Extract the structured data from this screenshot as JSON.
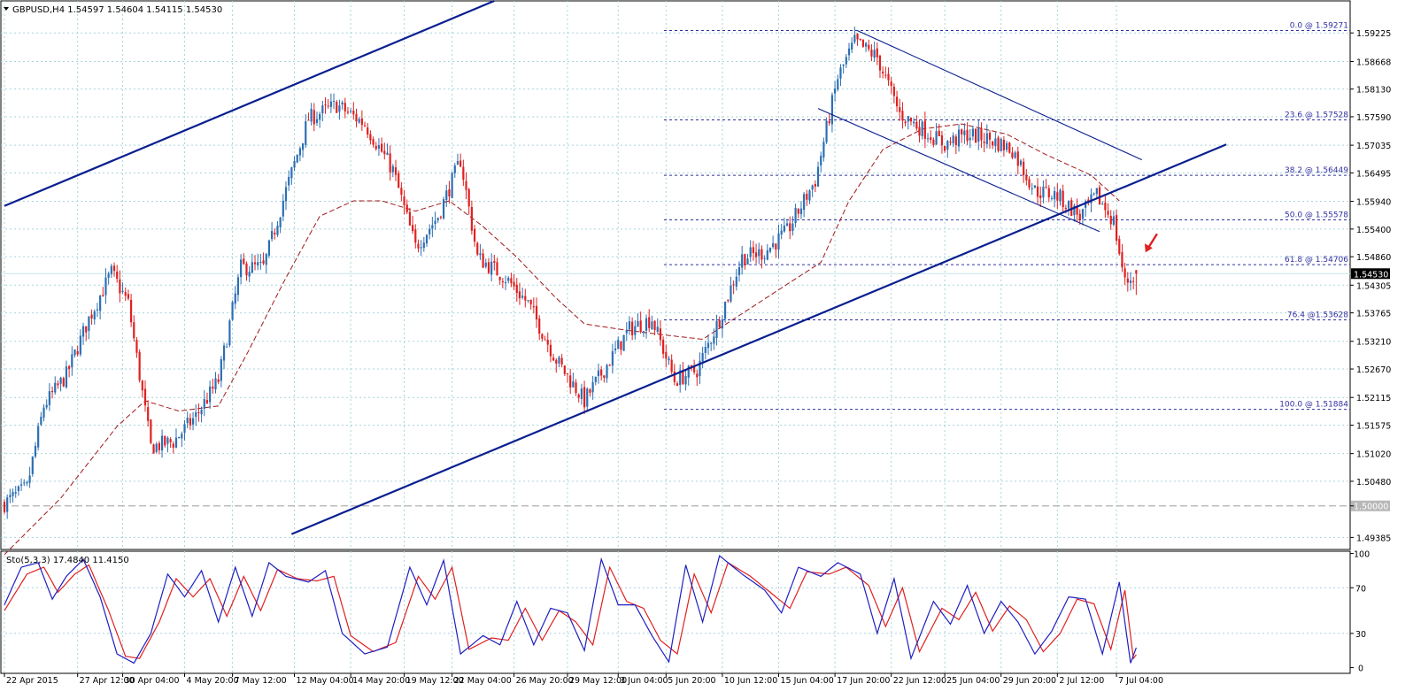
{
  "header": {
    "symbol_text": "GBPUSD,H4  1.54597  1.54604  1.54115  1.54530"
  },
  "stoch_header": {
    "text": "Sto(5,3,3) 17.4840 11.4150"
  },
  "price_axis": {
    "ticks": [
      "1.59225",
      "1.58668",
      "1.58130",
      "1.57590",
      "1.57035",
      "1.56495",
      "1.55940",
      "1.55400",
      "1.54860",
      "1.54305",
      "1.53765",
      "1.53210",
      "1.52670",
      "1.52115",
      "1.51575",
      "1.51020",
      "1.50480",
      "1.50000",
      "1.49385"
    ],
    "tick_values": [
      1.59225,
      1.58668,
      1.5813,
      1.5759,
      1.57035,
      1.56495,
      1.5594,
      1.554,
      1.5486,
      1.54305,
      1.53765,
      1.5321,
      1.5267,
      1.52115,
      1.51575,
      1.5102,
      1.5048,
      1.5,
      1.49385
    ],
    "current_price_label": "1.54530",
    "current_price": 1.5453,
    "level_label": "1.50000",
    "level_price": 1.5
  },
  "stoch_axis": {
    "ticks": [
      "100",
      "70",
      "30",
      "0"
    ],
    "tick_values": [
      100,
      70,
      30,
      0
    ]
  },
  "time_axis": {
    "labels": [
      "22 Apr 2015",
      "27 Apr 12:00",
      "30 Apr 04:00",
      "4 May 20:00",
      "7 May 12:00",
      "12 May 04:00",
      "14 May 20:00",
      "19 May 12:00",
      "22 May 04:00",
      "26 May 20:00",
      "29 May 12:00",
      "3 Jun 04:00",
      "5 Jun 20:00",
      "10 Jun 12:00",
      "15 Jun 04:00",
      "17 Jun 20:00",
      "22 Jun 12:00",
      "25 Jun 04:00",
      "29 Jun 20:00",
      "2 Jul 12:00",
      "7 Jul 04:00"
    ],
    "bar_index": [
      0,
      26,
      42,
      64,
      81,
      103,
      123,
      142,
      159,
      181,
      200,
      218,
      235,
      255,
      275,
      295,
      315,
      334,
      354,
      374,
      395
    ]
  },
  "fibonacci": [
    {
      "label": "0.0 @ 1.59271",
      "price": 1.59271
    },
    {
      "label": "23.6 @ 1.57528",
      "price": 1.57528
    },
    {
      "label": "38.2 @ 1.56449",
      "price": 1.56449
    },
    {
      "label": "50.0 @ 1.55578",
      "price": 1.55578
    },
    {
      "label": "61.8 @ 1.54706",
      "price": 1.54706
    },
    {
      "label": "76.4 @1.53628",
      "price": 1.53628
    },
    {
      "label": "100.0 @ 1.51884",
      "price": 1.51884
    }
  ],
  "colors": {
    "bull": "#2c6fb4",
    "bear": "#e02020",
    "grid": "#a8d4dc",
    "trendline": "#0a1f8f",
    "fib": "#3030a0",
    "ma": "#a01818",
    "stoch_main": "#1f1fc0",
    "stoch_signal": "#e02020",
    "arrow": "#e02020"
  },
  "chart_data": [
    {
      "type": "candlestick",
      "title": "GBPUSD,H4",
      "timeframe": "H4",
      "bar_count": 403,
      "ylim": [
        1.4915,
        1.5985
      ],
      "last_ohlc": {
        "open": 1.54597,
        "high": 1.54604,
        "low": 1.54115,
        "close": 1.5453
      },
      "close_path": [
        {
          "bar": 0,
          "close": 1.5005
        },
        {
          "bar": 8,
          "close": 1.5035
        },
        {
          "bar": 14,
          "close": 1.5195
        },
        {
          "bar": 22,
          "close": 1.5255
        },
        {
          "bar": 30,
          "close": 1.5365
        },
        {
          "bar": 38,
          "close": 1.5455
        },
        {
          "bar": 44,
          "close": 1.5395
        },
        {
          "bar": 52,
          "close": 1.5115
        },
        {
          "bar": 60,
          "close": 1.5125
        },
        {
          "bar": 68,
          "close": 1.5175
        },
        {
          "bar": 76,
          "close": 1.5245
        },
        {
          "bar": 84,
          "close": 1.5465
        },
        {
          "bar": 92,
          "close": 1.5465
        },
        {
          "bar": 100,
          "close": 1.5615
        },
        {
          "bar": 108,
          "close": 1.5755
        },
        {
          "bar": 118,
          "close": 1.5782
        },
        {
          "bar": 128,
          "close": 1.5745
        },
        {
          "bar": 138,
          "close": 1.5655
        },
        {
          "bar": 146,
          "close": 1.5505
        },
        {
          "bar": 154,
          "close": 1.5565
        },
        {
          "bar": 162,
          "close": 1.5675
        },
        {
          "bar": 168,
          "close": 1.5485
        },
        {
          "bar": 178,
          "close": 1.5445
        },
        {
          "bar": 186,
          "close": 1.5395
        },
        {
          "bar": 196,
          "close": 1.5285
        },
        {
          "bar": 206,
          "close": 1.5205
        },
        {
          "bar": 214,
          "close": 1.5275
        },
        {
          "bar": 222,
          "close": 1.5345
        },
        {
          "bar": 230,
          "close": 1.5365
        },
        {
          "bar": 238,
          "close": 1.5245
        },
        {
          "bar": 246,
          "close": 1.5265
        },
        {
          "bar": 254,
          "close": 1.5365
        },
        {
          "bar": 262,
          "close": 1.5485
        },
        {
          "bar": 270,
          "close": 1.5495
        },
        {
          "bar": 278,
          "close": 1.5535
        },
        {
          "bar": 288,
          "close": 1.5635
        },
        {
          "bar": 296,
          "close": 1.5835
        },
        {
          "bar": 302,
          "close": 1.5905
        },
        {
          "bar": 310,
          "close": 1.5875
        },
        {
          "bar": 318,
          "close": 1.5765
        },
        {
          "bar": 326,
          "close": 1.5735
        },
        {
          "bar": 334,
          "close": 1.5705
        },
        {
          "bar": 342,
          "close": 1.5725
        },
        {
          "bar": 350,
          "close": 1.5715
        },
        {
          "bar": 358,
          "close": 1.5695
        },
        {
          "bar": 366,
          "close": 1.5615
        },
        {
          "bar": 374,
          "close": 1.5605
        },
        {
          "bar": 382,
          "close": 1.5565
        },
        {
          "bar": 388,
          "close": 1.5605
        },
        {
          "bar": 394,
          "close": 1.5555
        },
        {
          "bar": 398,
          "close": 1.5435
        },
        {
          "bar": 402,
          "close": 1.5453
        }
      ],
      "moving_average": [
        {
          "bar": 0,
          "value": 1.4905
        },
        {
          "bar": 20,
          "value": 1.5015
        },
        {
          "bar": 40,
          "value": 1.5155
        },
        {
          "bar": 50,
          "value": 1.5205
        },
        {
          "bar": 62,
          "value": 1.5185
        },
        {
          "bar": 76,
          "value": 1.5195
        },
        {
          "bar": 86,
          "value": 1.5295
        },
        {
          "bar": 100,
          "value": 1.5445
        },
        {
          "bar": 112,
          "value": 1.5565
        },
        {
          "bar": 124,
          "value": 1.5595
        },
        {
          "bar": 134,
          "value": 1.5595
        },
        {
          "bar": 146,
          "value": 1.5575
        },
        {
          "bar": 158,
          "value": 1.5595
        },
        {
          "bar": 170,
          "value": 1.5545
        },
        {
          "bar": 182,
          "value": 1.5485
        },
        {
          "bar": 196,
          "value": 1.5405
        },
        {
          "bar": 206,
          "value": 1.5355
        },
        {
          "bar": 218,
          "value": 1.5345
        },
        {
          "bar": 232,
          "value": 1.5335
        },
        {
          "bar": 248,
          "value": 1.5325
        },
        {
          "bar": 262,
          "value": 1.5375
        },
        {
          "bar": 276,
          "value": 1.5425
        },
        {
          "bar": 290,
          "value": 1.5475
        },
        {
          "bar": 300,
          "value": 1.5595
        },
        {
          "bar": 312,
          "value": 1.5695
        },
        {
          "bar": 326,
          "value": 1.5735
        },
        {
          "bar": 340,
          "value": 1.5745
        },
        {
          "bar": 356,
          "value": 1.5725
        },
        {
          "bar": 370,
          "value": 1.5685
        },
        {
          "bar": 386,
          "value": 1.5645
        },
        {
          "bar": 396,
          "value": 1.5595
        }
      ],
      "trendlines": [
        {
          "name": "channel-upper",
          "from": {
            "bar": 0,
            "price": 1.5585
          },
          "to": {
            "bar": 174,
            "price": 1.5985
          }
        },
        {
          "name": "channel-lower",
          "from": {
            "bar": 102,
            "price": 1.4945
          },
          "to": {
            "bar": 434,
            "price": 1.5705
          }
        },
        {
          "name": "down-channel-top",
          "from": {
            "bar": 303,
            "price": 1.5927
          },
          "to": {
            "bar": 404,
            "price": 1.5675
          }
        },
        {
          "name": "down-channel-bottom",
          "from": {
            "bar": 289,
            "price": 1.5775
          },
          "to": {
            "bar": 389,
            "price": 1.5535
          }
        }
      ],
      "annotation": {
        "type": "arrow",
        "direction": "down-left",
        "near_bar": 405,
        "near_price": 1.551
      }
    },
    {
      "type": "line",
      "title": "Sto(5,3,3)",
      "ylim": [
        -5,
        102
      ],
      "series": [
        {
          "name": "Sto(5,3,3)",
          "last": 17.484,
          "values_ref": "oscillating 0-100"
        },
        {
          "name": "signal",
          "last": 11.415
        }
      ],
      "levels": [
        30,
        70
      ],
      "main_path": [
        {
          "bar": 0,
          "v": 55
        },
        {
          "bar": 6,
          "v": 88
        },
        {
          "bar": 12,
          "v": 92
        },
        {
          "bar": 17,
          "v": 60
        },
        {
          "bar": 22,
          "v": 80
        },
        {
          "bar": 28,
          "v": 95
        },
        {
          "bar": 34,
          "v": 62
        },
        {
          "bar": 40,
          "v": 12
        },
        {
          "bar": 46,
          "v": 4
        },
        {
          "bar": 52,
          "v": 30
        },
        {
          "bar": 58,
          "v": 82
        },
        {
          "bar": 64,
          "v": 62
        },
        {
          "bar": 70,
          "v": 85
        },
        {
          "bar": 76,
          "v": 40
        },
        {
          "bar": 82,
          "v": 88
        },
        {
          "bar": 88,
          "v": 45
        },
        {
          "bar": 94,
          "v": 92
        },
        {
          "bar": 100,
          "v": 80
        },
        {
          "bar": 108,
          "v": 75
        },
        {
          "bar": 114,
          "v": 85
        },
        {
          "bar": 120,
          "v": 30
        },
        {
          "bar": 128,
          "v": 12
        },
        {
          "bar": 136,
          "v": 18
        },
        {
          "bar": 144,
          "v": 88
        },
        {
          "bar": 150,
          "v": 55
        },
        {
          "bar": 156,
          "v": 94
        },
        {
          "bar": 162,
          "v": 12
        },
        {
          "bar": 170,
          "v": 28
        },
        {
          "bar": 176,
          "v": 20
        },
        {
          "bar": 182,
          "v": 58
        },
        {
          "bar": 188,
          "v": 20
        },
        {
          "bar": 194,
          "v": 52
        },
        {
          "bar": 200,
          "v": 48
        },
        {
          "bar": 206,
          "v": 15
        },
        {
          "bar": 212,
          "v": 95
        },
        {
          "bar": 218,
          "v": 55
        },
        {
          "bar": 224,
          "v": 55
        },
        {
          "bar": 230,
          "v": 28
        },
        {
          "bar": 236,
          "v": 5
        },
        {
          "bar": 242,
          "v": 90
        },
        {
          "bar": 248,
          "v": 40
        },
        {
          "bar": 254,
          "v": 98
        },
        {
          "bar": 262,
          "v": 82
        },
        {
          "bar": 270,
          "v": 68
        },
        {
          "bar": 276,
          "v": 48
        },
        {
          "bar": 282,
          "v": 88
        },
        {
          "bar": 290,
          "v": 80
        },
        {
          "bar": 296,
          "v": 92
        },
        {
          "bar": 304,
          "v": 82
        },
        {
          "bar": 310,
          "v": 30
        },
        {
          "bar": 316,
          "v": 78
        },
        {
          "bar": 322,
          "v": 8
        },
        {
          "bar": 330,
          "v": 58
        },
        {
          "bar": 336,
          "v": 38
        },
        {
          "bar": 342,
          "v": 72
        },
        {
          "bar": 348,
          "v": 30
        },
        {
          "bar": 354,
          "v": 58
        },
        {
          "bar": 360,
          "v": 40
        },
        {
          "bar": 366,
          "v": 12
        },
        {
          "bar": 372,
          "v": 32
        },
        {
          "bar": 378,
          "v": 62
        },
        {
          "bar": 384,
          "v": 60
        },
        {
          "bar": 390,
          "v": 12
        },
        {
          "bar": 396,
          "v": 75
        },
        {
          "bar": 400,
          "v": 4
        },
        {
          "bar": 402,
          "v": 17.5
        }
      ],
      "signal_path": [
        {
          "bar": 0,
          "v": 50
        },
        {
          "bar": 8,
          "v": 82
        },
        {
          "bar": 14,
          "v": 88
        },
        {
          "bar": 19,
          "v": 66
        },
        {
          "bar": 25,
          "v": 82
        },
        {
          "bar": 30,
          "v": 90
        },
        {
          "bar": 37,
          "v": 50
        },
        {
          "bar": 43,
          "v": 10
        },
        {
          "bar": 48,
          "v": 8
        },
        {
          "bar": 55,
          "v": 40
        },
        {
          "bar": 61,
          "v": 78
        },
        {
          "bar": 67,
          "v": 62
        },
        {
          "bar": 73,
          "v": 78
        },
        {
          "bar": 79,
          "v": 45
        },
        {
          "bar": 85,
          "v": 80
        },
        {
          "bar": 91,
          "v": 50
        },
        {
          "bar": 97,
          "v": 86
        },
        {
          "bar": 104,
          "v": 78
        },
        {
          "bar": 111,
          "v": 76
        },
        {
          "bar": 117,
          "v": 80
        },
        {
          "bar": 123,
          "v": 28
        },
        {
          "bar": 131,
          "v": 14
        },
        {
          "bar": 139,
          "v": 22
        },
        {
          "bar": 147,
          "v": 80
        },
        {
          "bar": 153,
          "v": 60
        },
        {
          "bar": 159,
          "v": 88
        },
        {
          "bar": 165,
          "v": 16
        },
        {
          "bar": 173,
          "v": 26
        },
        {
          "bar": 179,
          "v": 24
        },
        {
          "bar": 185,
          "v": 52
        },
        {
          "bar": 191,
          "v": 24
        },
        {
          "bar": 197,
          "v": 50
        },
        {
          "bar": 203,
          "v": 40
        },
        {
          "bar": 209,
          "v": 20
        },
        {
          "bar": 215,
          "v": 88
        },
        {
          "bar": 221,
          "v": 58
        },
        {
          "bar": 227,
          "v": 52
        },
        {
          "bar": 233,
          "v": 24
        },
        {
          "bar": 239,
          "v": 12
        },
        {
          "bar": 245,
          "v": 82
        },
        {
          "bar": 251,
          "v": 48
        },
        {
          "bar": 257,
          "v": 92
        },
        {
          "bar": 265,
          "v": 80
        },
        {
          "bar": 273,
          "v": 64
        },
        {
          "bar": 279,
          "v": 52
        },
        {
          "bar": 285,
          "v": 84
        },
        {
          "bar": 293,
          "v": 82
        },
        {
          "bar": 299,
          "v": 88
        },
        {
          "bar": 307,
          "v": 72
        },
        {
          "bar": 313,
          "v": 36
        },
        {
          "bar": 319,
          "v": 70
        },
        {
          "bar": 325,
          "v": 14
        },
        {
          "bar": 333,
          "v": 52
        },
        {
          "bar": 339,
          "v": 42
        },
        {
          "bar": 345,
          "v": 66
        },
        {
          "bar": 351,
          "v": 32
        },
        {
          "bar": 357,
          "v": 54
        },
        {
          "bar": 363,
          "v": 42
        },
        {
          "bar": 369,
          "v": 14
        },
        {
          "bar": 375,
          "v": 30
        },
        {
          "bar": 381,
          "v": 60
        },
        {
          "bar": 387,
          "v": 56
        },
        {
          "bar": 393,
          "v": 16
        },
        {
          "bar": 398,
          "v": 68
        },
        {
          "bar": 401,
          "v": 8
        },
        {
          "bar": 402,
          "v": 11.4
        }
      ]
    }
  ]
}
